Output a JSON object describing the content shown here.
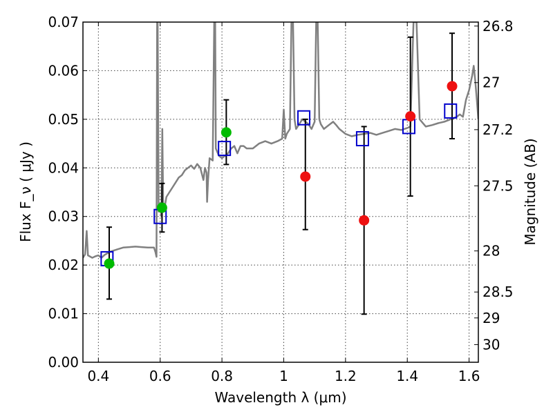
{
  "chart_data": {
    "type": "scatter",
    "xlabel": "Wavelength  λ (μm)",
    "ylabel": "Flux  F_ν  ( μJy )",
    "y2label": "Magnitude (AB)",
    "xlim": [
      0.35,
      1.63
    ],
    "ylim": [
      0.0,
      0.07
    ],
    "grid": true,
    "x_ticks": [
      0.4,
      0.6,
      0.8,
      1.0,
      1.2,
      1.4,
      1.6
    ],
    "x_tick_labels": [
      "0.4",
      "0.6",
      "0.8",
      "1",
      "1.2",
      "1.4",
      "1.6"
    ],
    "y_ticks": [
      0.0,
      0.01,
      0.02,
      0.03,
      0.04,
      0.05,
      0.06,
      0.07
    ],
    "y_tick_labels": [
      "0.00",
      "0.01",
      "0.02",
      "0.03",
      "0.04",
      "0.05",
      "0.06",
      "0.07"
    ],
    "y2_tick_labels": [
      "26.8",
      "27",
      "27.2",
      "27.5",
      "28",
      "28.5",
      "29",
      "30"
    ],
    "colors": {
      "spectrum": "#808080",
      "green_points": "#00bb00",
      "red_points": "#ee1111",
      "model_squares": "#0000cc",
      "error_bars": "#000000"
    },
    "series": [
      {
        "marker": "line",
        "points": [
          [
            0.35,
            0.0215
          ],
          [
            0.357,
            0.0222
          ],
          [
            0.362,
            0.027
          ],
          [
            0.366,
            0.022
          ],
          [
            0.372,
            0.0218
          ],
          [
            0.38,
            0.0215
          ],
          [
            0.39,
            0.0218
          ],
          [
            0.4,
            0.022
          ],
          [
            0.41,
            0.0215
          ],
          [
            0.42,
            0.0221
          ],
          [
            0.44,
            0.0228
          ],
          [
            0.46,
            0.0232
          ],
          [
            0.48,
            0.0236
          ],
          [
            0.5,
            0.0237
          ],
          [
            0.52,
            0.0238
          ],
          [
            0.54,
            0.0237
          ],
          [
            0.56,
            0.0236
          ],
          [
            0.58,
            0.0236
          ],
          [
            0.585,
            0.0226
          ],
          [
            0.588,
            0.0217
          ],
          [
            0.59,
            0.07
          ],
          [
            0.592,
            0.07
          ],
          [
            0.595,
            0.031
          ],
          [
            0.6,
            0.032
          ],
          [
            0.604,
            0.03
          ],
          [
            0.607,
            0.048
          ],
          [
            0.61,
            0.031
          ],
          [
            0.615,
            0.032
          ],
          [
            0.62,
            0.034
          ],
          [
            0.63,
            0.035
          ],
          [
            0.64,
            0.036
          ],
          [
            0.65,
            0.037
          ],
          [
            0.66,
            0.038
          ],
          [
            0.67,
            0.0385
          ],
          [
            0.68,
            0.0395
          ],
          [
            0.69,
            0.04
          ],
          [
            0.7,
            0.0405
          ],
          [
            0.71,
            0.0398
          ],
          [
            0.72,
            0.0408
          ],
          [
            0.73,
            0.04
          ],
          [
            0.74,
            0.0375
          ],
          [
            0.745,
            0.04
          ],
          [
            0.75,
            0.039
          ],
          [
            0.752,
            0.033
          ],
          [
            0.755,
            0.0375
          ],
          [
            0.76,
            0.042
          ],
          [
            0.77,
            0.0415
          ],
          [
            0.775,
            0.07
          ],
          [
            0.778,
            0.07
          ],
          [
            0.78,
            0.044
          ],
          [
            0.79,
            0.0425
          ],
          [
            0.8,
            0.042
          ],
          [
            0.81,
            0.0425
          ],
          [
            0.82,
            0.043
          ],
          [
            0.83,
            0.044
          ],
          [
            0.84,
            0.0445
          ],
          [
            0.85,
            0.043
          ],
          [
            0.86,
            0.0445
          ],
          [
            0.87,
            0.0445
          ],
          [
            0.88,
            0.044
          ],
          [
            0.9,
            0.044
          ],
          [
            0.92,
            0.045
          ],
          [
            0.94,
            0.0455
          ],
          [
            0.96,
            0.045
          ],
          [
            0.98,
            0.0455
          ],
          [
            0.995,
            0.046
          ],
          [
            1.0,
            0.052
          ],
          [
            1.005,
            0.046
          ],
          [
            1.01,
            0.047
          ],
          [
            1.02,
            0.048
          ],
          [
            1.025,
            0.07
          ],
          [
            1.03,
            0.07
          ],
          [
            1.035,
            0.05
          ],
          [
            1.04,
            0.048
          ],
          [
            1.05,
            0.049
          ],
          [
            1.06,
            0.05
          ],
          [
            1.07,
            0.0495
          ],
          [
            1.08,
            0.049
          ],
          [
            1.09,
            0.048
          ],
          [
            1.1,
            0.0495
          ],
          [
            1.105,
            0.07
          ],
          [
            1.11,
            0.07
          ],
          [
            1.115,
            0.05
          ],
          [
            1.12,
            0.049
          ],
          [
            1.13,
            0.048
          ],
          [
            1.14,
            0.0485
          ],
          [
            1.15,
            0.049
          ],
          [
            1.16,
            0.0495
          ],
          [
            1.17,
            0.0488
          ],
          [
            1.18,
            0.048
          ],
          [
            1.2,
            0.047
          ],
          [
            1.22,
            0.0465
          ],
          [
            1.24,
            0.0468
          ],
          [
            1.26,
            0.047
          ],
          [
            1.28,
            0.0472
          ],
          [
            1.3,
            0.0468
          ],
          [
            1.32,
            0.0472
          ],
          [
            1.34,
            0.0476
          ],
          [
            1.36,
            0.048
          ],
          [
            1.38,
            0.0478
          ],
          [
            1.4,
            0.0482
          ],
          [
            1.41,
            0.0485
          ],
          [
            1.42,
            0.07
          ],
          [
            1.43,
            0.07
          ],
          [
            1.44,
            0.05
          ],
          [
            1.46,
            0.0485
          ],
          [
            1.48,
            0.0488
          ],
          [
            1.5,
            0.0492
          ],
          [
            1.52,
            0.0495
          ],
          [
            1.54,
            0.05
          ],
          [
            1.56,
            0.0505
          ],
          [
            1.57,
            0.051
          ],
          [
            1.58,
            0.0505
          ],
          [
            1.59,
            0.054
          ],
          [
            1.6,
            0.056
          ],
          [
            1.61,
            0.059
          ],
          [
            1.615,
            0.061
          ],
          [
            1.62,
            0.058
          ],
          [
            1.625,
            0.054
          ],
          [
            1.63,
            0.05
          ]
        ]
      },
      {
        "marker": "o",
        "points": [
          {
            "x": 0.435,
            "y": 0.0203,
            "yerr": [
              0.013,
              0.0278
            ]
          },
          {
            "x": 0.606,
            "y": 0.0318,
            "yerr": [
              0.0268,
              0.0368
            ]
          },
          {
            "x": 0.814,
            "y": 0.0473,
            "yerr": [
              0.0407,
              0.054
            ]
          }
        ]
      },
      {
        "marker": "o",
        "points": [
          {
            "x": 1.07,
            "y": 0.0382,
            "yerr": [
              0.0273,
              0.05
            ]
          },
          {
            "x": 1.26,
            "y": 0.0292,
            "yerr": [
              0.0099,
              0.0485
            ]
          },
          {
            "x": 1.41,
            "y": 0.0506,
            "yerr": [
              0.0342,
              0.0669
            ]
          },
          {
            "x": 1.545,
            "y": 0.0568,
            "yerr": [
              0.046,
              0.0677
            ]
          }
        ]
      },
      {
        "marker": "s",
        "points": [
          {
            "x": 0.428,
            "y": 0.0213
          },
          {
            "x": 0.6,
            "y": 0.03
          },
          {
            "x": 0.808,
            "y": 0.044
          },
          {
            "x": 1.065,
            "y": 0.0503
          },
          {
            "x": 1.255,
            "y": 0.046
          },
          {
            "x": 1.405,
            "y": 0.0485
          },
          {
            "x": 1.54,
            "y": 0.0517
          }
        ]
      }
    ]
  }
}
